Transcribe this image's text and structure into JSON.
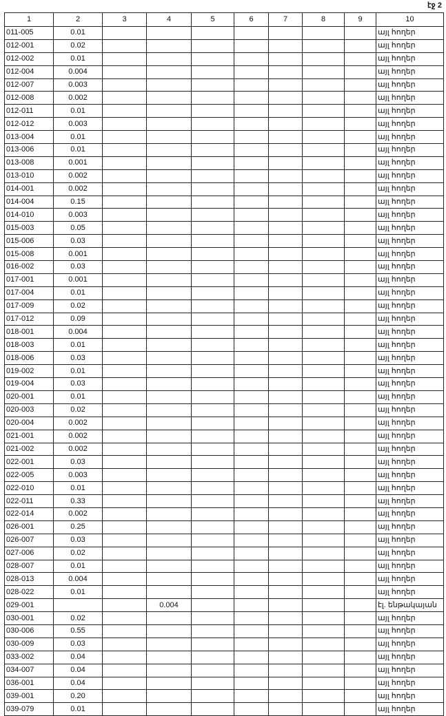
{
  "page_label": "էջ 2",
  "columns": [
    "1",
    "2",
    "3",
    "4",
    "5",
    "6",
    "7",
    "8",
    "9",
    "10"
  ],
  "rows": [
    [
      "011-005",
      "0.01",
      "",
      "",
      "",
      "",
      "",
      "",
      "",
      "այլ հողեր"
    ],
    [
      "012-001",
      "0.02",
      "",
      "",
      "",
      "",
      "",
      "",
      "",
      "այլ հողեր"
    ],
    [
      "012-002",
      "0.01",
      "",
      "",
      "",
      "",
      "",
      "",
      "",
      "այլ հողեր"
    ],
    [
      "012-004",
      "0.004",
      "",
      "",
      "",
      "",
      "",
      "",
      "",
      "այլ հողեր"
    ],
    [
      "012-007",
      "0.003",
      "",
      "",
      "",
      "",
      "",
      "",
      "",
      "այլ հողեր"
    ],
    [
      "012-008",
      "0.002",
      "",
      "",
      "",
      "",
      "",
      "",
      "",
      "այլ հողեր"
    ],
    [
      "012-011",
      "0.01",
      "",
      "",
      "",
      "",
      "",
      "",
      "",
      "այլ հողեր"
    ],
    [
      "012-012",
      "0.003",
      "",
      "",
      "",
      "",
      "",
      "",
      "",
      "այլ հողեր"
    ],
    [
      "013-004",
      "0.01",
      "",
      "",
      "",
      "",
      "",
      "",
      "",
      "այլ հողեր"
    ],
    [
      "013-006",
      "0.01",
      "",
      "",
      "",
      "",
      "",
      "",
      "",
      "այլ հողեր"
    ],
    [
      "013-008",
      "0.001",
      "",
      "",
      "",
      "",
      "",
      "",
      "",
      "այլ հողեր"
    ],
    [
      "013-010",
      "0.002",
      "",
      "",
      "",
      "",
      "",
      "",
      "",
      "այլ հողեր"
    ],
    [
      "014-001",
      "0.002",
      "",
      "",
      "",
      "",
      "",
      "",
      "",
      "այլ հողեր"
    ],
    [
      "014-004",
      "0.15",
      "",
      "",
      "",
      "",
      "",
      "",
      "",
      "այլ հողեր"
    ],
    [
      "014-010",
      "0.003",
      "",
      "",
      "",
      "",
      "",
      "",
      "",
      "այլ հողեր"
    ],
    [
      "015-003",
      "0.05",
      "",
      "",
      "",
      "",
      "",
      "",
      "",
      "այլ հողեր"
    ],
    [
      "015-006",
      "0.03",
      "",
      "",
      "",
      "",
      "",
      "",
      "",
      "այլ հողեր"
    ],
    [
      "015-008",
      "0.001",
      "",
      "",
      "",
      "",
      "",
      "",
      "",
      "այլ հողեր"
    ],
    [
      "016-002",
      "0.03",
      "",
      "",
      "",
      "",
      "",
      "",
      "",
      "այլ հողեր"
    ],
    [
      "017-001",
      "0.001",
      "",
      "",
      "",
      "",
      "",
      "",
      "",
      "այլ հողեր"
    ],
    [
      "017-004",
      "0.01",
      "",
      "",
      "",
      "",
      "",
      "",
      "",
      "այլ հողեր"
    ],
    [
      "017-009",
      "0.02",
      "",
      "",
      "",
      "",
      "",
      "",
      "",
      "այլ հողեր"
    ],
    [
      "017-012",
      "0.09",
      "",
      "",
      "",
      "",
      "",
      "",
      "",
      "այլ հողեր"
    ],
    [
      "018-001",
      "0.004",
      "",
      "",
      "",
      "",
      "",
      "",
      "",
      "այլ հողեր"
    ],
    [
      "018-003",
      "0.01",
      "",
      "",
      "",
      "",
      "",
      "",
      "",
      "այլ հողեր"
    ],
    [
      "018-006",
      "0.03",
      "",
      "",
      "",
      "",
      "",
      "",
      "",
      "այլ հողեր"
    ],
    [
      "019-002",
      "0.01",
      "",
      "",
      "",
      "",
      "",
      "",
      "",
      "այլ հողեր"
    ],
    [
      "019-004",
      "0.03",
      "",
      "",
      "",
      "",
      "",
      "",
      "",
      "այլ հողեր"
    ],
    [
      "020-001",
      "0.01",
      "",
      "",
      "",
      "",
      "",
      "",
      "",
      "այլ հողեր"
    ],
    [
      "020-003",
      "0.02",
      "",
      "",
      "",
      "",
      "",
      "",
      "",
      "այլ հողեր"
    ],
    [
      "020-004",
      "0.002",
      "",
      "",
      "",
      "",
      "",
      "",
      "",
      "այլ հողեր"
    ],
    [
      "021-001",
      "0.002",
      "",
      "",
      "",
      "",
      "",
      "",
      "",
      "այլ հողեր"
    ],
    [
      "021-002",
      "0.002",
      "",
      "",
      "",
      "",
      "",
      "",
      "",
      "այլ հողեր"
    ],
    [
      "022-001",
      "0.03",
      "",
      "",
      "",
      "",
      "",
      "",
      "",
      "այլ հողեր"
    ],
    [
      "022-005",
      "0.003",
      "",
      "",
      "",
      "",
      "",
      "",
      "",
      "այլ հողեր"
    ],
    [
      "022-010",
      "0.01",
      "",
      "",
      "",
      "",
      "",
      "",
      "",
      "այլ հողեր"
    ],
    [
      "022-011",
      "0.33",
      "",
      "",
      "",
      "",
      "",
      "",
      "",
      "այլ հողեր"
    ],
    [
      "022-014",
      "0.002",
      "",
      "",
      "",
      "",
      "",
      "",
      "",
      "այլ հողեր"
    ],
    [
      "026-001",
      "0.25",
      "",
      "",
      "",
      "",
      "",
      "",
      "",
      "այլ հողեր"
    ],
    [
      "026-007",
      "0.03",
      "",
      "",
      "",
      "",
      "",
      "",
      "",
      "այլ հողեր"
    ],
    [
      "027-006",
      "0.02",
      "",
      "",
      "",
      "",
      "",
      "",
      "",
      "այլ հողեր"
    ],
    [
      "028-007",
      "0.01",
      "",
      "",
      "",
      "",
      "",
      "",
      "",
      "այլ հողեր"
    ],
    [
      "028-013",
      "0.004",
      "",
      "",
      "",
      "",
      "",
      "",
      "",
      "այլ հողեր"
    ],
    [
      "028-022",
      "0.01",
      "",
      "",
      "",
      "",
      "",
      "",
      "",
      "այլ հողեր"
    ],
    [
      "029-001",
      "",
      "",
      "0.004",
      "",
      "",
      "",
      "",
      "",
      "էլ. ենթակայան"
    ],
    [
      "030-001",
      "0.02",
      "",
      "",
      "",
      "",
      "",
      "",
      "",
      "այլ հողեր"
    ],
    [
      "030-006",
      "0.55",
      "",
      "",
      "",
      "",
      "",
      "",
      "",
      "այլ հողեր"
    ],
    [
      "030-009",
      "0.03",
      "",
      "",
      "",
      "",
      "",
      "",
      "",
      "այլ հողեր"
    ],
    [
      "033-002",
      "0.04",
      "",
      "",
      "",
      "",
      "",
      "",
      "",
      "այլ հողեր"
    ],
    [
      "034-007",
      "0.04",
      "",
      "",
      "",
      "",
      "",
      "",
      "",
      "այլ հողեր"
    ],
    [
      "036-001",
      "0.04",
      "",
      "",
      "",
      "",
      "",
      "",
      "",
      "այլ հողեր"
    ],
    [
      "039-001",
      "0.20",
      "",
      "",
      "",
      "",
      "",
      "",
      "",
      "այլ հողեր"
    ],
    [
      "039-079",
      "0.01",
      "",
      "",
      "",
      "",
      "",
      "",
      "",
      "այլ հողեր"
    ]
  ]
}
